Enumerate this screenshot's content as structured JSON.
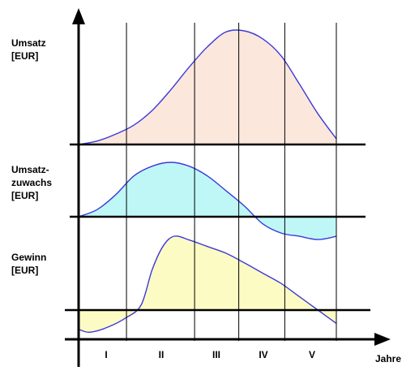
{
  "chart_data": {
    "type": "area",
    "panels": [
      {
        "id": "umsatz",
        "ylabel": "Umsatz\n[EUR]",
        "fill": "#fce7dc",
        "curve": [
          [
            0,
            0
          ],
          [
            0.5,
            0.03
          ],
          [
            1.0,
            0.09
          ],
          [
            1.5,
            0.17
          ],
          [
            2.0,
            0.3
          ],
          [
            2.5,
            0.48
          ],
          [
            3.0,
            0.68
          ],
          [
            3.5,
            0.86
          ],
          [
            4.0,
            0.99
          ],
          [
            4.5,
            1.0
          ],
          [
            5.0,
            0.93
          ],
          [
            5.5,
            0.78
          ],
          [
            6.0,
            0.53
          ],
          [
            6.5,
            0.27
          ],
          [
            7.0,
            0.05
          ]
        ]
      },
      {
        "id": "umsatzzuwachs",
        "ylabel": "Umsatz-\nzuwachs\n[EUR]",
        "fill": "#bff7f7",
        "curve": [
          [
            0,
            0
          ],
          [
            0.5,
            0.13
          ],
          [
            1.0,
            0.4
          ],
          [
            1.5,
            0.75
          ],
          [
            2.0,
            0.93
          ],
          [
            2.5,
            1.0
          ],
          [
            3.0,
            0.93
          ],
          [
            3.5,
            0.75
          ],
          [
            4.0,
            0.48
          ],
          [
            4.5,
            0.2
          ],
          [
            5.0,
            -0.13
          ],
          [
            5.5,
            -0.3
          ],
          [
            6.0,
            -0.36
          ],
          [
            6.5,
            -0.42
          ],
          [
            7.0,
            -0.36
          ]
        ]
      },
      {
        "id": "gewinn",
        "ylabel": "Gewinn\n[EUR]",
        "fill": "#fdfbc4",
        "curve": [
          [
            0,
            -0.26
          ],
          [
            0.3,
            -0.3
          ],
          [
            0.8,
            -0.23
          ],
          [
            1.3,
            -0.1
          ],
          [
            1.7,
            0.07
          ],
          [
            2.0,
            0.55
          ],
          [
            2.3,
            0.87
          ],
          [
            2.6,
            1.0
          ],
          [
            3.0,
            0.95
          ],
          [
            3.5,
            0.86
          ],
          [
            4.0,
            0.77
          ],
          [
            4.5,
            0.64
          ],
          [
            5.0,
            0.5
          ],
          [
            5.5,
            0.36
          ],
          [
            6.0,
            0.18
          ],
          [
            6.5,
            0.0
          ],
          [
            7.0,
            -0.18
          ]
        ]
      }
    ],
    "phases": [
      "I",
      "II",
      "III",
      "IV",
      "V"
    ],
    "phase_bounds": [
      1.3,
      3.15,
      4.35,
      5.6,
      7.0
    ],
    "xlabel": "Jahre"
  }
}
